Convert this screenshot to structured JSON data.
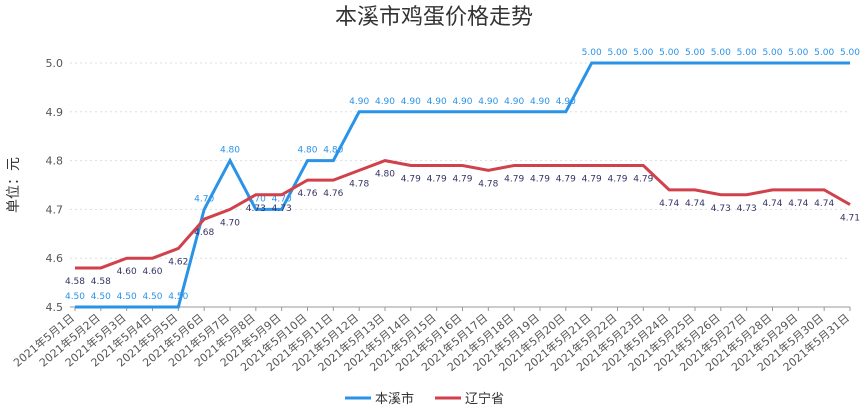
{
  "chart_data": {
    "type": "line",
    "title": "本溪市鸡蛋价格走势",
    "y_label": "单位：元",
    "categories": [
      "2021年5月1日",
      "2021年5月2日",
      "2021年5月3日",
      "2021年5月4日",
      "2021年5月5日",
      "2021年5月6日",
      "2021年5月7日",
      "2021年5月8日",
      "2021年5月9日",
      "2021年5月10日",
      "2021年5月11日",
      "2021年5月12日",
      "2021年5月13日",
      "2021年5月14日",
      "2021年5月15日",
      "2021年5月16日",
      "2021年5月17日",
      "2021年5月18日",
      "2021年5月19日",
      "2021年5月20日",
      "2021年5月21日",
      "2021年5月22日",
      "2021年5月23日",
      "2021年5月24日",
      "2021年5月25日",
      "2021年5月26日",
      "2021年5月27日",
      "2021年5月28日",
      "2021年5月29日",
      "2021年5月30日",
      "2021年5月31日"
    ],
    "series": [
      {
        "name": "本溪市",
        "color": "#2a93e8",
        "values": [
          4.5,
          4.5,
          4.5,
          4.5,
          4.5,
          4.7,
          4.8,
          4.7,
          4.7,
          4.8,
          4.8,
          4.9,
          4.9,
          4.9,
          4.9,
          4.9,
          4.9,
          4.9,
          4.9,
          4.9,
          5,
          5,
          5,
          5,
          5,
          5,
          5,
          5,
          5,
          5,
          5
        ],
        "value_labels": [
          "4.50",
          "4.50",
          "4.50",
          "4.50",
          "4.50",
          "4.70",
          "4.80",
          "4.70",
          "4.70",
          "4.80",
          "4.80",
          "4.90",
          "4.90",
          "4.90",
          "4.90",
          "4.90",
          "4.90",
          "4.90",
          "4.90",
          "4.90",
          "5.00",
          "5.00",
          "5.00",
          "5.00",
          "5.00",
          "5.00",
          "5.00",
          "5.00",
          "5.00",
          "5.00",
          "5.00"
        ]
      },
      {
        "name": "辽宁省",
        "color": "#d0414b",
        "values": [
          4.58,
          4.58,
          4.6,
          4.6,
          4.62,
          4.68,
          4.7,
          4.73,
          4.73,
          4.76,
          4.76,
          4.78,
          4.8,
          4.79,
          4.79,
          4.79,
          4.78,
          4.79,
          4.79,
          4.79,
          4.79,
          4.79,
          4.79,
          4.74,
          4.74,
          4.73,
          4.73,
          4.74,
          4.74,
          4.74,
          4.71
        ],
        "value_labels": [
          "4.58",
          "4.58",
          "4.60",
          "4.60",
          "4.62",
          "4.68",
          "4.70",
          "4.73",
          "4.73",
          "4.76",
          "4.76",
          "4.78",
          "4.80",
          "4.79",
          "4.79",
          "4.79",
          "4.78",
          "4.79",
          "4.79",
          "4.79",
          "4.79",
          "4.79",
          "4.79",
          "4.74",
          "4.74",
          "4.73",
          "4.73",
          "4.74",
          "4.74",
          "4.74",
          "4.71"
        ]
      }
    ],
    "ylim": [
      4.5,
      5
    ],
    "yticks": [
      4.5,
      4.6,
      4.7,
      4.8,
      4.9,
      {
        "value": 5,
        "label": "5.0"
      }
    ],
    "grid": true,
    "legend": "bottom"
  }
}
